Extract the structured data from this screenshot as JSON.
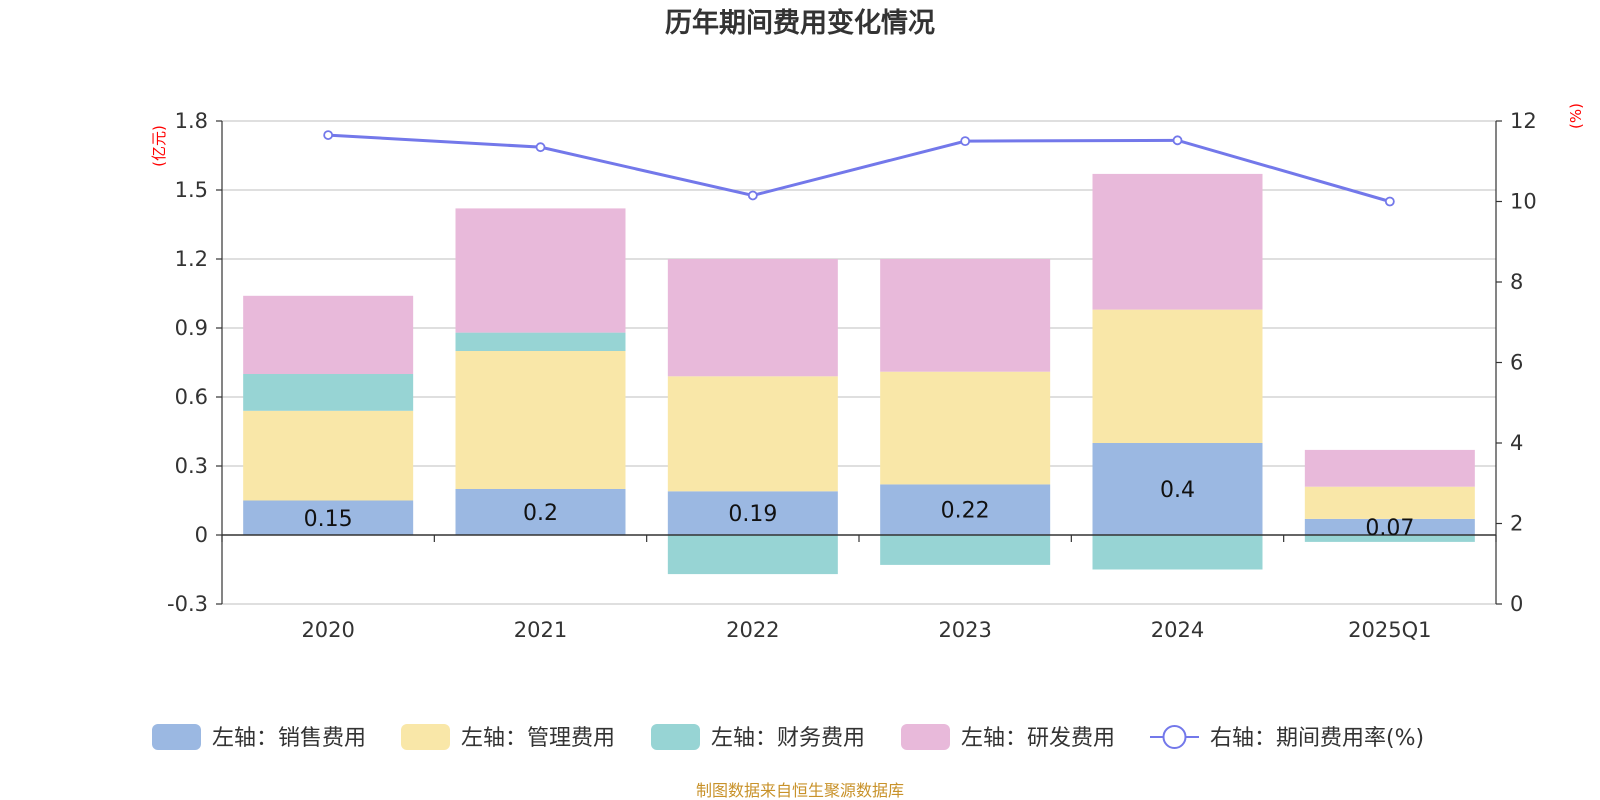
{
  "chart_data": {
    "type": "bar",
    "title": "历年期间费用变化情况",
    "categories": [
      "2020",
      "2021",
      "2022",
      "2023",
      "2024",
      "2025Q1"
    ],
    "left_axis": {
      "unit": "(亿元)",
      "ylim": [
        -0.3,
        1.8
      ],
      "ticks": [
        -0.3,
        0,
        0.3,
        0.6,
        0.9,
        1.2,
        1.5,
        1.8
      ]
    },
    "right_axis": {
      "unit": "(%)",
      "ylim": [
        0,
        12
      ],
      "ticks": [
        0,
        2,
        4,
        6,
        8,
        10,
        12
      ]
    },
    "series": [
      {
        "name": "左轴：销售费用",
        "axis": "left",
        "kind": "bar",
        "color": "#9bb8e2",
        "values": [
          0.15,
          0.2,
          0.19,
          0.22,
          0.4,
          0.07
        ],
        "labels": [
          "0.15",
          "0.2",
          "0.19",
          "0.22",
          "0.4",
          "0.07"
        ]
      },
      {
        "name": "左轴：管理费用",
        "axis": "left",
        "kind": "bar",
        "color": "#f9e7a8",
        "values": [
          0.39,
          0.6,
          0.5,
          0.49,
          0.58,
          0.14
        ]
      },
      {
        "name": "左轴：财务费用",
        "axis": "left",
        "kind": "bar",
        "color": "#97d4d4",
        "values": [
          0.16,
          0.08,
          -0.17,
          -0.13,
          -0.15,
          -0.03
        ]
      },
      {
        "name": "左轴：研发费用",
        "axis": "left",
        "kind": "bar",
        "color": "#e8b9da",
        "values": [
          0.34,
          0.54,
          0.51,
          0.49,
          0.59,
          0.16
        ]
      },
      {
        "name": "右轴：期间费用率(%)",
        "axis": "right",
        "kind": "line",
        "color": "#7378ea",
        "values": [
          11.65,
          11.35,
          10.15,
          11.5,
          11.52,
          10.0
        ]
      }
    ]
  },
  "source": "制图数据来自恒生聚源数据库"
}
